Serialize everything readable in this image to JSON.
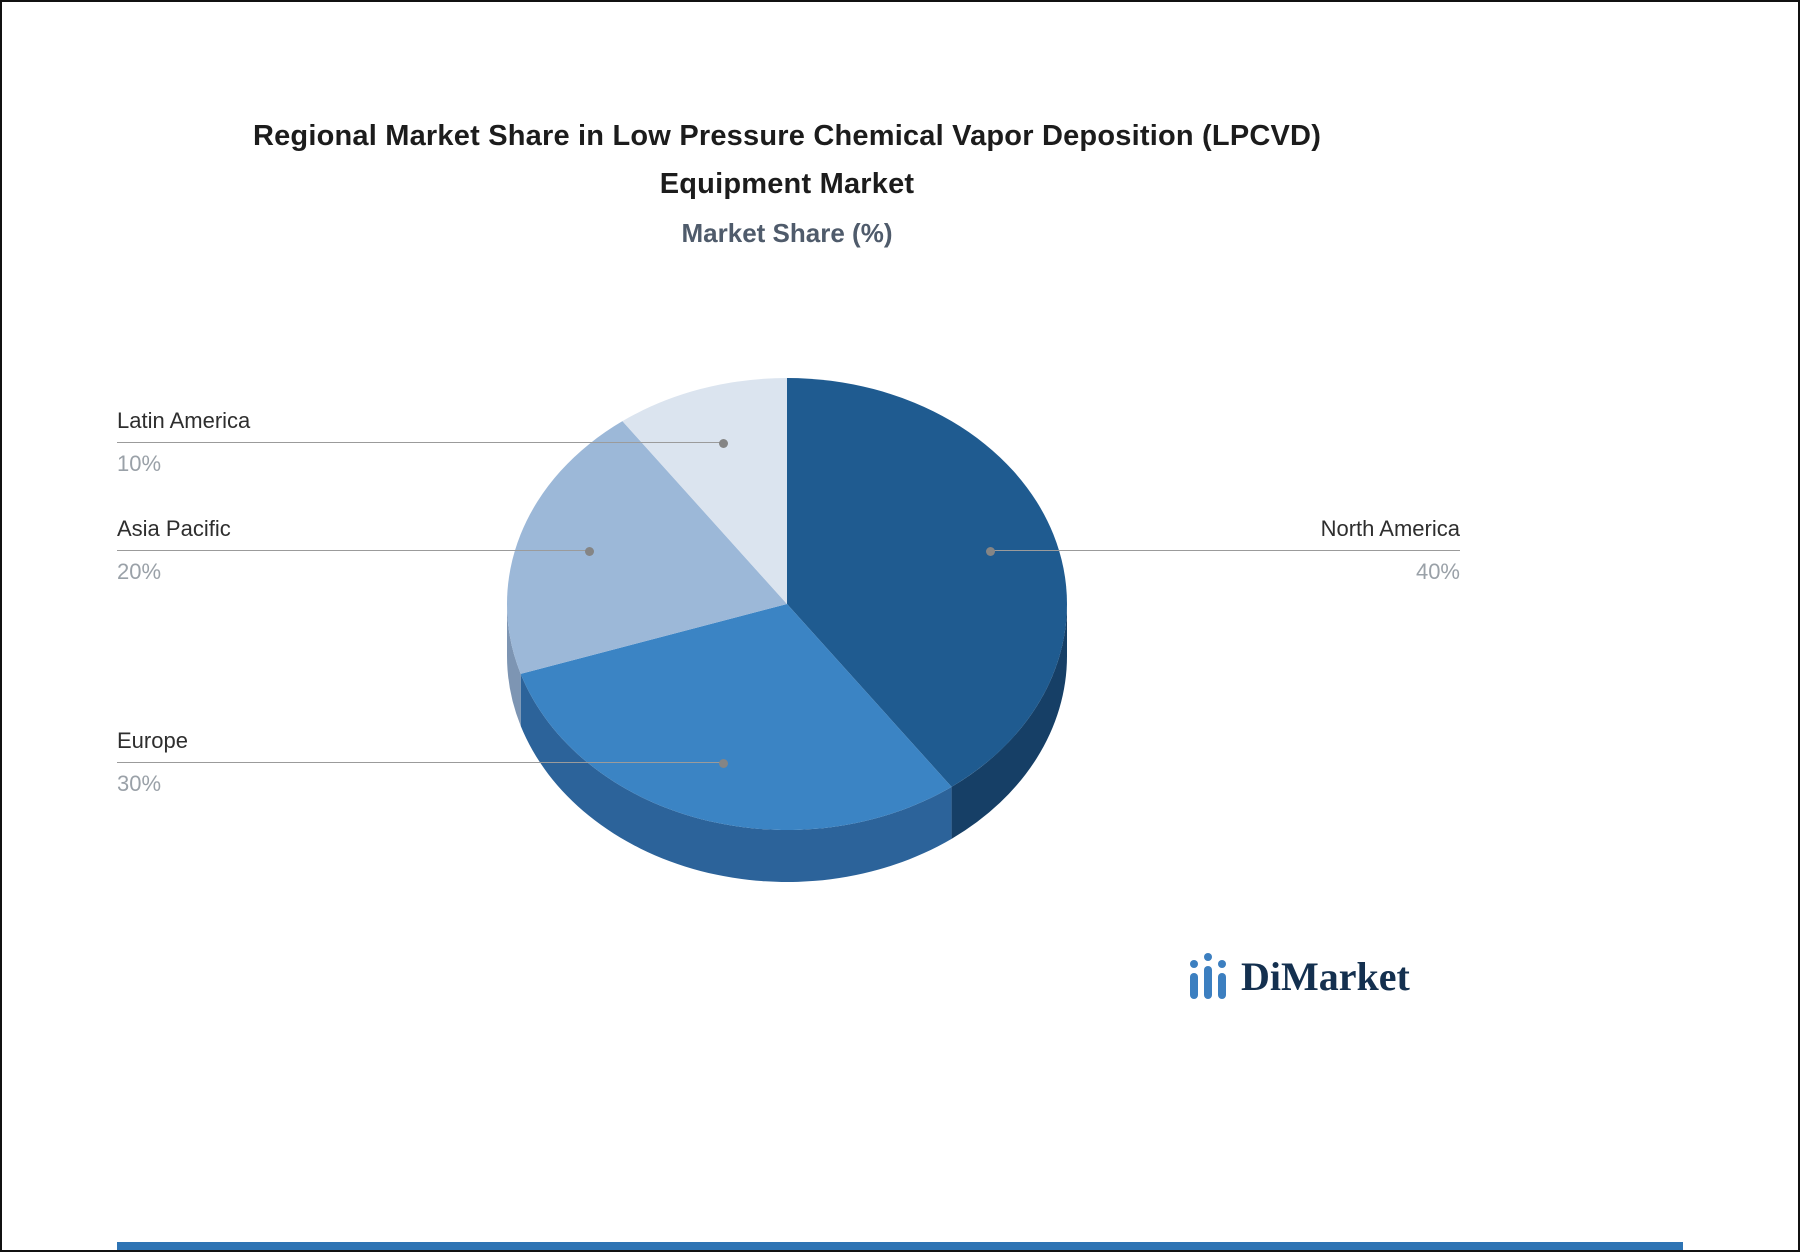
{
  "title": "Regional Market Share in Low Pressure Chemical Vapor Deposition (LPCVD) Equipment Market",
  "subtitle": "Market Share (%)",
  "logo_text": "DiMarket",
  "callouts": [
    {
      "label": "Latin America",
      "value": "10%"
    },
    {
      "label": "Asia Pacific",
      "value": "20%"
    },
    {
      "label": "Europe",
      "value": "30%"
    },
    {
      "label": "North America",
      "value": "40%"
    }
  ],
  "chart_data": {
    "type": "pie",
    "title": "Regional Market Share in Low Pressure Chemical Vapor Deposition (LPCVD) Equipment Market",
    "subtitle": "Market Share (%)",
    "labels": [
      "North America",
      "Europe",
      "Asia Pacific",
      "Latin America"
    ],
    "values": [
      40,
      30,
      20,
      10
    ],
    "unit": "%",
    "start_angle": 0,
    "legend_position": "callout-lines",
    "style": "3d-pie",
    "colors": [
      "#1f5b90",
      "#3b84c4",
      "#9cb8d8",
      "#dbe4ef"
    ],
    "side_colors": [
      "#163f66",
      "#2c639a",
      "#7d95b3",
      "#b8c5d6"
    ],
    "accent_color": "#2e74b4",
    "leader_line_color": "#9b9b9b",
    "label_color": "#2e2e2e",
    "value_color": "#9aa1a8"
  }
}
